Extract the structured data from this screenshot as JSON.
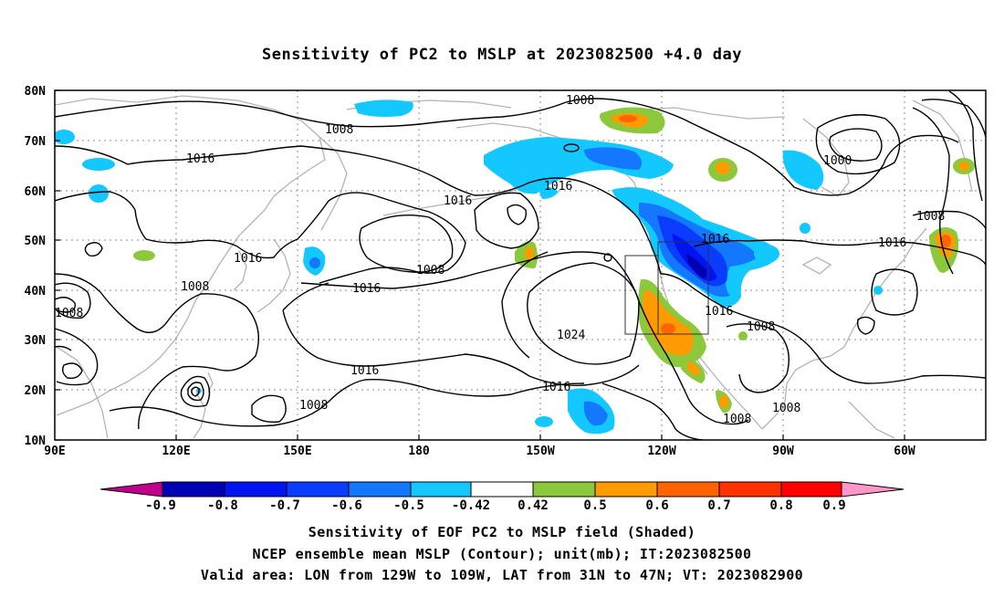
{
  "title": "Sensitivity of PC2 to MSLP at 2023082500 +4.0 day",
  "lat_labels": [
    "80N",
    "70N",
    "60N",
    "50N",
    "40N",
    "30N",
    "20N",
    "10N"
  ],
  "lon_labels": [
    "90E",
    "120E",
    "150E",
    "180",
    "150W",
    "120W",
    "90W",
    "60W"
  ],
  "contour_labels": [
    {
      "id": "c1008a",
      "text": "1008"
    },
    {
      "id": "c1008b",
      "text": "1008"
    },
    {
      "id": "c1000",
      "text": "1000"
    },
    {
      "id": "c1016a",
      "text": "1016"
    },
    {
      "id": "c1016b",
      "text": "1016"
    },
    {
      "id": "c1016c",
      "text": "1016"
    },
    {
      "id": "c1008c",
      "text": "1008"
    },
    {
      "id": "c1016d",
      "text": "1016"
    },
    {
      "id": "c1008d",
      "text": "1008"
    },
    {
      "id": "c1016e",
      "text": "1016"
    },
    {
      "id": "c1008e",
      "text": "1008"
    },
    {
      "id": "c1008f",
      "text": "1008"
    },
    {
      "id": "c1016f",
      "text": "1016"
    },
    {
      "id": "c1024",
      "text": "1024"
    },
    {
      "id": "c1016g",
      "text": "1016"
    },
    {
      "id": "c1016h",
      "text": "1016"
    },
    {
      "id": "c1008g",
      "text": "1008"
    },
    {
      "id": "c1016i",
      "text": "1016"
    },
    {
      "id": "c1008h",
      "text": "1008"
    },
    {
      "id": "c1008i",
      "text": "1008"
    },
    {
      "id": "c1008j",
      "text": "1008"
    },
    {
      "id": "c1016j",
      "text": "1016"
    }
  ],
  "colorbar": {
    "labels": [
      "-0.9",
      "-0.8",
      "-0.7",
      "-0.6",
      "-0.5",
      "-0.42",
      "0.42",
      "0.5",
      "0.6",
      "0.7",
      "0.8",
      "0.9"
    ],
    "colors": [
      "#c0008a",
      "#0000b4",
      "#0014f0",
      "#0a3cff",
      "#1478ff",
      "#12c8ff",
      "#ffffff",
      "#8cc83c",
      "#ff9b00",
      "#ff6400",
      "#ff3200",
      "#ff0000",
      "#ff96c8"
    ]
  },
  "captions": {
    "line1": "Sensitivity of EOF PC2 to MSLP field (Shaded)",
    "line2": "NCEP ensemble mean MSLP (Contour); unit(mb); IT:2023082500",
    "line3": "Valid area: LON from 129W to 109W, LAT from 31N to 47N; VT: 2023082900"
  }
}
